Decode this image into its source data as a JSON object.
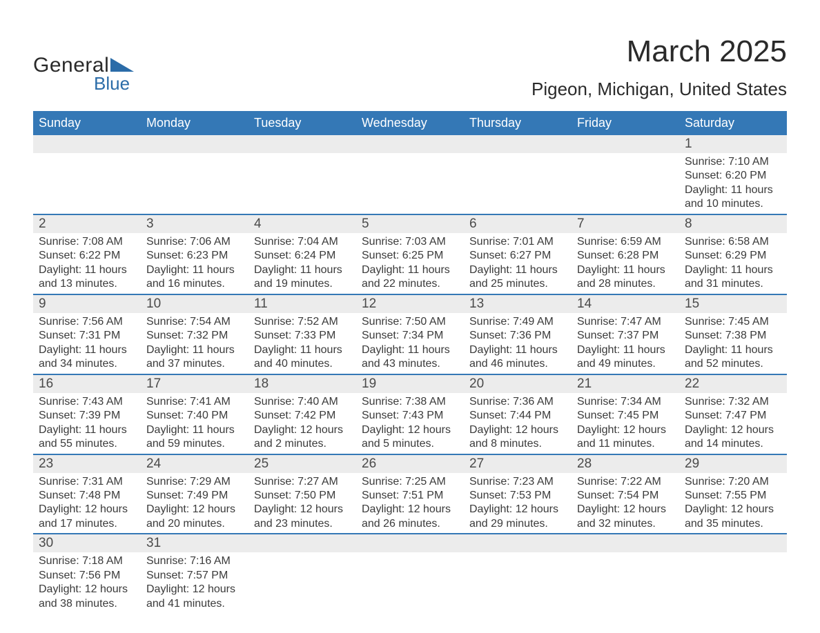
{
  "brand": {
    "name_top": "General",
    "name_bottom": "Blue",
    "text_color": "#2a2a2a",
    "accent_color": "#2b6ca8",
    "triangle_color": "#2b6ca8"
  },
  "header": {
    "month_title": "March 2025",
    "location": "Pigeon, Michigan, United States"
  },
  "calendar": {
    "type": "table",
    "header_bg": "#3478b6",
    "header_fg": "#ffffff",
    "row_divider_color": "#3478b6",
    "daynum_bg": "#ececec",
    "text_color": "#3a3a3a",
    "columns": [
      "Sunday",
      "Monday",
      "Tuesday",
      "Wednesday",
      "Thursday",
      "Friday",
      "Saturday"
    ],
    "weeks": [
      [
        null,
        null,
        null,
        null,
        null,
        null,
        {
          "n": "1",
          "sunrise": "Sunrise: 7:10 AM",
          "sunset": "Sunset: 6:20 PM",
          "d1": "Daylight: 11 hours",
          "d2": "and 10 minutes."
        }
      ],
      [
        {
          "n": "2",
          "sunrise": "Sunrise: 7:08 AM",
          "sunset": "Sunset: 6:22 PM",
          "d1": "Daylight: 11 hours",
          "d2": "and 13 minutes."
        },
        {
          "n": "3",
          "sunrise": "Sunrise: 7:06 AM",
          "sunset": "Sunset: 6:23 PM",
          "d1": "Daylight: 11 hours",
          "d2": "and 16 minutes."
        },
        {
          "n": "4",
          "sunrise": "Sunrise: 7:04 AM",
          "sunset": "Sunset: 6:24 PM",
          "d1": "Daylight: 11 hours",
          "d2": "and 19 minutes."
        },
        {
          "n": "5",
          "sunrise": "Sunrise: 7:03 AM",
          "sunset": "Sunset: 6:25 PM",
          "d1": "Daylight: 11 hours",
          "d2": "and 22 minutes."
        },
        {
          "n": "6",
          "sunrise": "Sunrise: 7:01 AM",
          "sunset": "Sunset: 6:27 PM",
          "d1": "Daylight: 11 hours",
          "d2": "and 25 minutes."
        },
        {
          "n": "7",
          "sunrise": "Sunrise: 6:59 AM",
          "sunset": "Sunset: 6:28 PM",
          "d1": "Daylight: 11 hours",
          "d2": "and 28 minutes."
        },
        {
          "n": "8",
          "sunrise": "Sunrise: 6:58 AM",
          "sunset": "Sunset: 6:29 PM",
          "d1": "Daylight: 11 hours",
          "d2": "and 31 minutes."
        }
      ],
      [
        {
          "n": "9",
          "sunrise": "Sunrise: 7:56 AM",
          "sunset": "Sunset: 7:31 PM",
          "d1": "Daylight: 11 hours",
          "d2": "and 34 minutes."
        },
        {
          "n": "10",
          "sunrise": "Sunrise: 7:54 AM",
          "sunset": "Sunset: 7:32 PM",
          "d1": "Daylight: 11 hours",
          "d2": "and 37 minutes."
        },
        {
          "n": "11",
          "sunrise": "Sunrise: 7:52 AM",
          "sunset": "Sunset: 7:33 PM",
          "d1": "Daylight: 11 hours",
          "d2": "and 40 minutes."
        },
        {
          "n": "12",
          "sunrise": "Sunrise: 7:50 AM",
          "sunset": "Sunset: 7:34 PM",
          "d1": "Daylight: 11 hours",
          "d2": "and 43 minutes."
        },
        {
          "n": "13",
          "sunrise": "Sunrise: 7:49 AM",
          "sunset": "Sunset: 7:36 PM",
          "d1": "Daylight: 11 hours",
          "d2": "and 46 minutes."
        },
        {
          "n": "14",
          "sunrise": "Sunrise: 7:47 AM",
          "sunset": "Sunset: 7:37 PM",
          "d1": "Daylight: 11 hours",
          "d2": "and 49 minutes."
        },
        {
          "n": "15",
          "sunrise": "Sunrise: 7:45 AM",
          "sunset": "Sunset: 7:38 PM",
          "d1": "Daylight: 11 hours",
          "d2": "and 52 minutes."
        }
      ],
      [
        {
          "n": "16",
          "sunrise": "Sunrise: 7:43 AM",
          "sunset": "Sunset: 7:39 PM",
          "d1": "Daylight: 11 hours",
          "d2": "and 55 minutes."
        },
        {
          "n": "17",
          "sunrise": "Sunrise: 7:41 AM",
          "sunset": "Sunset: 7:40 PM",
          "d1": "Daylight: 11 hours",
          "d2": "and 59 minutes."
        },
        {
          "n": "18",
          "sunrise": "Sunrise: 7:40 AM",
          "sunset": "Sunset: 7:42 PM",
          "d1": "Daylight: 12 hours",
          "d2": "and 2 minutes."
        },
        {
          "n": "19",
          "sunrise": "Sunrise: 7:38 AM",
          "sunset": "Sunset: 7:43 PM",
          "d1": "Daylight: 12 hours",
          "d2": "and 5 minutes."
        },
        {
          "n": "20",
          "sunrise": "Sunrise: 7:36 AM",
          "sunset": "Sunset: 7:44 PM",
          "d1": "Daylight: 12 hours",
          "d2": "and 8 minutes."
        },
        {
          "n": "21",
          "sunrise": "Sunrise: 7:34 AM",
          "sunset": "Sunset: 7:45 PM",
          "d1": "Daylight: 12 hours",
          "d2": "and 11 minutes."
        },
        {
          "n": "22",
          "sunrise": "Sunrise: 7:32 AM",
          "sunset": "Sunset: 7:47 PM",
          "d1": "Daylight: 12 hours",
          "d2": "and 14 minutes."
        }
      ],
      [
        {
          "n": "23",
          "sunrise": "Sunrise: 7:31 AM",
          "sunset": "Sunset: 7:48 PM",
          "d1": "Daylight: 12 hours",
          "d2": "and 17 minutes."
        },
        {
          "n": "24",
          "sunrise": "Sunrise: 7:29 AM",
          "sunset": "Sunset: 7:49 PM",
          "d1": "Daylight: 12 hours",
          "d2": "and 20 minutes."
        },
        {
          "n": "25",
          "sunrise": "Sunrise: 7:27 AM",
          "sunset": "Sunset: 7:50 PM",
          "d1": "Daylight: 12 hours",
          "d2": "and 23 minutes."
        },
        {
          "n": "26",
          "sunrise": "Sunrise: 7:25 AM",
          "sunset": "Sunset: 7:51 PM",
          "d1": "Daylight: 12 hours",
          "d2": "and 26 minutes."
        },
        {
          "n": "27",
          "sunrise": "Sunrise: 7:23 AM",
          "sunset": "Sunset: 7:53 PM",
          "d1": "Daylight: 12 hours",
          "d2": "and 29 minutes."
        },
        {
          "n": "28",
          "sunrise": "Sunrise: 7:22 AM",
          "sunset": "Sunset: 7:54 PM",
          "d1": "Daylight: 12 hours",
          "d2": "and 32 minutes."
        },
        {
          "n": "29",
          "sunrise": "Sunrise: 7:20 AM",
          "sunset": "Sunset: 7:55 PM",
          "d1": "Daylight: 12 hours",
          "d2": "and 35 minutes."
        }
      ],
      [
        {
          "n": "30",
          "sunrise": "Sunrise: 7:18 AM",
          "sunset": "Sunset: 7:56 PM",
          "d1": "Daylight: 12 hours",
          "d2": "and 38 minutes."
        },
        {
          "n": "31",
          "sunrise": "Sunrise: 7:16 AM",
          "sunset": "Sunset: 7:57 PM",
          "d1": "Daylight: 12 hours",
          "d2": "and 41 minutes."
        },
        null,
        null,
        null,
        null,
        null
      ]
    ]
  }
}
